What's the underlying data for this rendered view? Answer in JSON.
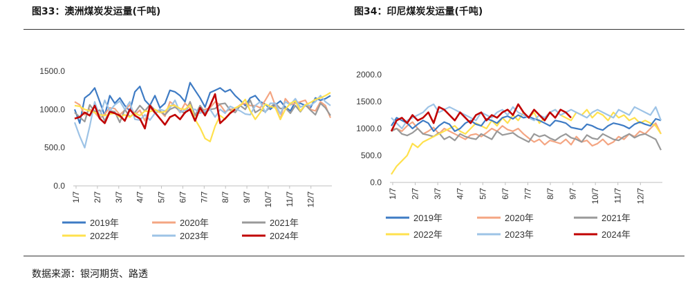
{
  "titles": {
    "left": "图33：澳洲煤炭发运量(千吨)",
    "right": "图34：印尼煤炭发运量(千吨)"
  },
  "source": "数据来源：银河期货、路透",
  "chart_data": [
    {
      "type": "line",
      "title": "图33：澳洲煤炭发运量(千吨)",
      "ylim": [
        0,
        1500
      ],
      "y_ticks": [
        "0.0",
        "500.0",
        "1000.0",
        "1500.0"
      ],
      "x_ticks": [
        "1/7",
        "2/7",
        "3/7",
        "4/7",
        "5/7",
        "6/7",
        "7/7",
        "8/7",
        "9/7",
        "10/7",
        "11/7",
        "12/7"
      ],
      "series": [
        {
          "name": "2019年",
          "color": "#3E7BC4",
          "values": [
            1000,
            820,
            1150,
            1200,
            1280,
            1100,
            920,
            1180,
            1080,
            1150,
            1050,
            980,
            1230,
            1300,
            1120,
            1050,
            1180,
            1020,
            1080,
            1250,
            1230,
            1180,
            1100,
            1350,
            1250,
            1150,
            1030,
            1220,
            1250,
            1280,
            1230,
            1260,
            1180,
            1120,
            1050,
            1150,
            1180,
            1100,
            1070,
            1000,
            1060,
            1110,
            1030,
            980,
            1100,
            1080,
            1050,
            1020,
            1150,
            1120,
            1140,
            1180
          ]
        },
        {
          "name": "2020年",
          "color": "#F4A582",
          "values": [
            1100,
            1060,
            930,
            1000,
            960,
            880,
            940,
            1020,
            1010,
            930,
            990,
            1060,
            930,
            990,
            850,
            1020,
            950,
            980,
            910,
            1100,
            1050,
            960,
            1080,
            1010,
            920,
            970,
            1000,
            1020,
            1100,
            1060,
            970,
            1000,
            1010,
            1060,
            1080,
            1050,
            1050,
            1020,
            1120,
            1230,
            1050,
            870,
            1140,
            1060,
            1080,
            1100,
            1120,
            1000,
            980,
            1100,
            1050,
            890
          ]
        },
        {
          "name": "2021年",
          "color": "#999999",
          "values": [
            960,
            900,
            840,
            1060,
            970,
            990,
            850,
            980,
            970,
            830,
            1000,
            900,
            960,
            1050,
            980,
            1060,
            990,
            980,
            930,
            1000,
            1030,
            980,
            950,
            1100,
            920,
            1050,
            960,
            1000,
            1010,
            1070,
            1080,
            990,
            960,
            1050,
            1000,
            1120,
            960,
            1000,
            970,
            1030,
            1080,
            1010,
            1020,
            950,
            1050,
            970,
            1060,
            990,
            930,
            1080,
            1020,
            920
          ]
        },
        {
          "name": "2022年",
          "color": "#FFE14D",
          "values": [
            1050,
            1040,
            1000,
            980,
            960,
            930,
            920,
            940,
            950,
            900,
            930,
            900,
            950,
            920,
            980,
            970,
            1000,
            960,
            970,
            1050,
            1050,
            1010,
            1000,
            1060,
            870,
            760,
            620,
            580,
            780,
            920,
            870,
            960,
            1020,
            1050,
            1130,
            980,
            870,
            960,
            1070,
            1040,
            1020,
            870,
            1000,
            1080,
            1110,
            980,
            1060,
            1090,
            1130,
            1150,
            1180,
            1220
          ]
        },
        {
          "name": "2023年",
          "color": "#9DC3E6",
          "values": [
            830,
            650,
            500,
            780,
            1100,
            900,
            1120,
            980,
            1060,
            1110,
            1000,
            1100,
            870,
            860,
            930,
            860,
            950,
            1000,
            980,
            1020,
            1120,
            960,
            990,
            1000,
            1000,
            950,
            980,
            1000,
            900,
            1000,
            950,
            1040,
            1010,
            980,
            940,
            930,
            1050,
            1100,
            960,
            1080,
            1080,
            940,
            1100,
            1060,
            1140,
            1030,
            1060,
            1050,
            1100,
            1180,
            1100,
            1050
          ]
        },
        {
          "name": "2024年",
          "color": "#C00000",
          "values": [
            880,
            900,
            960,
            920,
            1050,
            880,
            820,
            970,
            950,
            920,
            850,
            1000,
            920,
            880,
            750,
            1050,
            960,
            880,
            800,
            900,
            930,
            870,
            960,
            1000,
            850,
            1020,
            920,
            1050,
            1200,
            820,
            880,
            950,
            1000
          ]
        }
      ],
      "legend_position": "bottom"
    },
    {
      "type": "line",
      "title": "图34：印尼煤炭发运量(千吨)",
      "ylim": [
        0,
        2000
      ],
      "y_ticks": [
        "0.0",
        "500.0",
        "1000.0",
        "1500.0",
        "2000.0"
      ],
      "x_ticks": [
        "1/7",
        "2/7",
        "3/7",
        "4/7",
        "5/7",
        "6/7",
        "7/7",
        "8/7",
        "9/7",
        "10/7",
        "11/7",
        "12/7"
      ],
      "series": [
        {
          "name": "2019年",
          "color": "#3E7BC4",
          "values": [
            1050,
            1200,
            1150,
            1100,
            1000,
            1080,
            1150,
            1100,
            950,
            1050,
            1120,
            1080,
            950,
            1000,
            1100,
            1150,
            1080,
            1050,
            1180,
            1150,
            1100,
            1200,
            1230,
            1180,
            1250,
            1200,
            1220,
            1180,
            1150,
            1100,
            1050,
            1150,
            1130,
            1100,
            1020,
            1000,
            980,
            1080,
            1050,
            1000,
            970,
            1050,
            1100,
            1080,
            1050,
            1000,
            1080,
            1120,
            1080,
            1050,
            1180,
            1150
          ]
        },
        {
          "name": "2020年",
          "color": "#F4A582",
          "values": [
            980,
            1000,
            950,
            1050,
            1120,
            1000,
            900,
            950,
            1020,
            900,
            1000,
            950,
            900,
            850,
            800,
            880,
            900,
            850,
            920,
            1000,
            950,
            1050,
            980,
            950,
            1000,
            900,
            820,
            750,
            800,
            700,
            780,
            750,
            720,
            800,
            700,
            850,
            750,
            780,
            680,
            720,
            800,
            700,
            750,
            850,
            800,
            900,
            850,
            950,
            900,
            1000,
            1100,
            900
          ]
        },
        {
          "name": "2021年",
          "color": "#999999",
          "values": [
            950,
            1000,
            900,
            870,
            920,
            1000,
            900,
            880,
            850,
            920,
            800,
            850,
            780,
            900,
            850,
            820,
            800,
            900,
            850,
            800,
            950,
            880,
            900,
            920,
            850,
            800,
            750,
            900,
            850,
            880,
            820,
            780,
            850,
            900,
            830,
            800,
            750,
            880,
            820,
            800,
            900,
            850,
            800,
            780,
            850,
            900,
            830,
            880,
            900,
            850,
            800,
            600
          ]
        },
        {
          "name": "2022年",
          "color": "#FFE14D",
          "values": [
            150,
            300,
            400,
            500,
            720,
            650,
            750,
            800,
            850,
            900,
            950,
            1000,
            1050,
            950,
            900,
            1000,
            1100,
            1050,
            1000,
            1150,
            1050,
            1200,
            1100,
            1250,
            1150,
            1300,
            1200,
            1300,
            1100,
            1200,
            1300,
            1350,
            1250,
            1200,
            1150,
            1300,
            1250,
            1350,
            1200,
            1300,
            1250,
            1150,
            1300,
            1200,
            1250,
            1150,
            1200,
            1100,
            1150,
            1100,
            1050,
            900
          ]
        },
        {
          "name": "2023年",
          "color": "#9DC3E6",
          "values": [
            1200,
            1100,
            1000,
            1150,
            1200,
            1250,
            1300,
            1400,
            1450,
            1300,
            1350,
            1400,
            1350,
            1300,
            1250,
            1200,
            1150,
            1300,
            1250,
            1200,
            1300,
            1350,
            1250,
            1400,
            1300,
            1250,
            1200,
            1150,
            1250,
            1200,
            1300,
            1350,
            1250,
            1300,
            1350,
            1300,
            1250,
            1200,
            1300,
            1350,
            1300,
            1250,
            1200,
            1350,
            1300,
            1250,
            1400,
            1350,
            1300,
            1250,
            1400,
            1150
          ]
        },
        {
          "name": "2024年",
          "color": "#C00000",
          "values": [
            950,
            1150,
            1200,
            1100,
            1250,
            1150,
            1200,
            1300,
            1100,
            1400,
            1350,
            1250,
            1150,
            1300,
            1200,
            1100,
            1250,
            1300,
            1150,
            1250,
            1200,
            1300,
            1350,
            1250,
            1450,
            1300,
            1200,
            1350,
            1250,
            1150,
            1300,
            1200,
            1350,
            1300,
            1200
          ]
        }
      ],
      "legend_position": "bottom"
    }
  ]
}
